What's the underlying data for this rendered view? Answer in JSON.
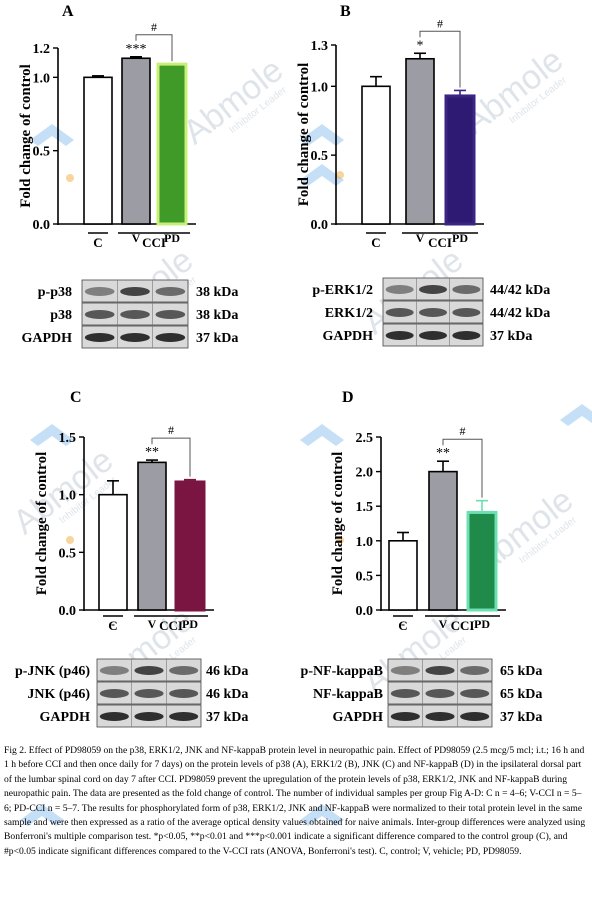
{
  "figure": {
    "caption": "Fig 2. Effect of PD98059 on the p38, ERK1/2, JNK and NF-kappaB protein level in neuropathic pain. Effect of PD98059 (2.5 mcg/5 mcl; i.t.; 16 h and 1 h before CCI and then once daily for 7 days) on the protein levels of p38 (A), ERK1/2 (B), JNK (C) and NF-kappaB (D) in the ipsilateral dorsal part of the lumbar spinal cord on day 7 after CCI. PD98059 prevent the upregulation of the protein levels of p38, ERK1/2, JNK and NF-kappaB during neuropathic pain. The data are presented as the fold change of control. The number of individual samples per group Fig A-D: C n = 4–6; V-CCI n = 5–6; PD-CCI n = 5–7. The results for phosphorylated form of p38, ERK1/2, JNK and NF-kappaB were normalized to their total protein level in the same sample and were then expressed as a ratio of the average optical density values obtained for naive animals. Inter-group differences were analyzed using Bonferroni's multiple comparison test. *p<0.05, **p<0.01 and ***p<0.001 indicate a significant difference compared to the control group (C), and #p<0.05 indicate significant differences compared to the V-CCI rats (ANOVA, Bonferroni's test). C, control; V, vehicle; PD, PD98059.",
    "watermark": "Abmole Inhibitor Leader"
  },
  "colors": {
    "control_fill": "#ffffff",
    "vehicle_fill": "#9c9ca4",
    "outline": "#000000"
  },
  "chart_data": [
    {
      "panel": "A",
      "type": "bar",
      "ylabel": "Fold change of control",
      "ylim": [
        0.0,
        1.2
      ],
      "yticks": [
        "0.0",
        "0.5",
        "1.0",
        "1.2"
      ],
      "categories": [
        "-",
        "V",
        "PD"
      ],
      "group_labels": [
        "C",
        "CCI"
      ],
      "values": [
        1.0,
        1.13,
        1.09
      ],
      "errors": [
        0.01,
        0.01,
        0.0
      ],
      "fills": [
        "#ffffff",
        "#9c9ca4",
        "#3f9a28"
      ],
      "edges": [
        "#000000",
        "#000000",
        "#c8f078"
      ],
      "stars": [
        "",
        "***",
        ""
      ],
      "hash": "#",
      "blots": [
        {
          "label": "p-p38",
          "kda": "38 kDa"
        },
        {
          "label": "p38",
          "kda": "38 kDa"
        },
        {
          "label": "GAPDH",
          "kda": "37 kDa"
        }
      ]
    },
    {
      "panel": "B",
      "type": "bar",
      "ylabel": "Fold change of control",
      "ylim": [
        0.0,
        1.3
      ],
      "yticks": [
        "0.0",
        "0.5",
        "1.0",
        "1.3"
      ],
      "categories": [
        "-",
        "V",
        "PD"
      ],
      "group_labels": [
        "C",
        "CCI"
      ],
      "values": [
        1.0,
        1.2,
        0.93
      ],
      "errors": [
        0.07,
        0.04,
        0.04
      ],
      "fills": [
        "#ffffff",
        "#9c9ca4",
        "#2f1a73"
      ],
      "edges": [
        "#000000",
        "#000000",
        "#3a2583"
      ],
      "stars": [
        "",
        "*",
        ""
      ],
      "hash": "#",
      "blots": [
        {
          "label": "p-ERK1/2",
          "kda": "44/42 kDa"
        },
        {
          "label": "ERK1/2",
          "kda": "44/42 kDa"
        },
        {
          "label": "GAPDH",
          "kda": "37 kDa"
        }
      ]
    },
    {
      "panel": "C",
      "type": "bar",
      "ylabel": "Fold change of control",
      "ylim": [
        0.0,
        1.5
      ],
      "yticks": [
        "0.0",
        "0.5",
        "1.0",
        "1.5"
      ],
      "categories": [
        "-",
        "V",
        "PD"
      ],
      "group_labels": [
        "C",
        "CCI"
      ],
      "values": [
        1.0,
        1.28,
        1.11
      ],
      "errors": [
        0.12,
        0.02,
        0.02
      ],
      "fills": [
        "#ffffff",
        "#9c9ca4",
        "#7a1440"
      ],
      "edges": [
        "#000000",
        "#000000",
        "#7a1440"
      ],
      "stars": [
        "",
        "**",
        ""
      ],
      "hash": "#",
      "blots": [
        {
          "label": "p-JNK (p46)",
          "kda": "46 kDa"
        },
        {
          "label": "JNK (p46)",
          "kda": "46 kDa"
        },
        {
          "label": "GAPDH",
          "kda": "37 kDa"
        }
      ]
    },
    {
      "panel": "D",
      "type": "bar",
      "ylabel": "Fold change of control",
      "ylim": [
        0.0,
        2.5
      ],
      "yticks": [
        "0.0",
        "0.5",
        "1.0",
        "1.5",
        "2.0",
        "2.5"
      ],
      "categories": [
        "-",
        "V",
        "PD"
      ],
      "group_labels": [
        "C",
        "CCI"
      ],
      "values": [
        1.0,
        2.0,
        1.41
      ],
      "errors": [
        0.12,
        0.15,
        0.17
      ],
      "fills": [
        "#ffffff",
        "#9c9ca4",
        "#1f8a4a"
      ],
      "edges": [
        "#000000",
        "#000000",
        "#6ce0b0"
      ],
      "stars": [
        "",
        "**",
        ""
      ],
      "hash": "#",
      "blots": [
        {
          "label": "p-NF-kappaB",
          "kda": "65 kDa"
        },
        {
          "label": "NF-kappaB",
          "kda": "65 kDa"
        },
        {
          "label": "GAPDH",
          "kda": "37 kDa"
        }
      ]
    }
  ]
}
